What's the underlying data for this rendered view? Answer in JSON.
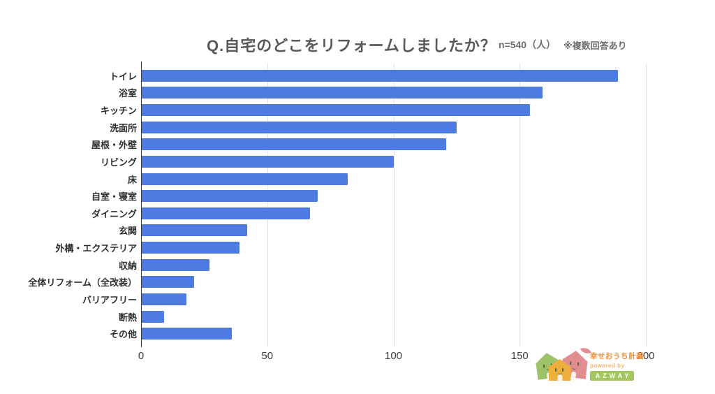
{
  "header": {
    "title": "Q.自宅のどこをリフォームしましたか？",
    "sample_size": "n=540（人）",
    "note": "※複数回答あり"
  },
  "chart_data": {
    "type": "bar",
    "orientation": "horizontal",
    "title": "Q.自宅のどこをリフォームしましたか？",
    "categories": [
      "トイレ",
      "浴室",
      "キッチン",
      "洗面所",
      "屋根・外壁",
      "リビング",
      "床",
      "自室・寝室",
      "ダイニング",
      "玄関",
      "外構・エクステリア",
      "収納",
      "全体リフォーム（全改装）",
      "バリアフリー",
      "断熱",
      "その他"
    ],
    "values": [
      189,
      159,
      154,
      125,
      121,
      100,
      82,
      70,
      67,
      42,
      39,
      27,
      21,
      18,
      9,
      36
    ],
    "xlim": [
      0,
      200
    ],
    "x_ticks": [
      0,
      50,
      100,
      150,
      200
    ],
    "grid": true,
    "bar_color": "#4d7be1",
    "gridline_color": "#e3e3e3",
    "axis_color": "#3c3c3c"
  },
  "logo": {
    "brand": "幸せおうち計画",
    "powered_by": "powered by",
    "company": "AZWAY",
    "colors": {
      "house_green": "#9cc26a",
      "house_yellow": "#efaf3c",
      "house_pink": "#e08e92",
      "brand_orange": "#f08c35",
      "powered_orange": "#f3b26e",
      "badge_green": "#a5c75f"
    }
  }
}
